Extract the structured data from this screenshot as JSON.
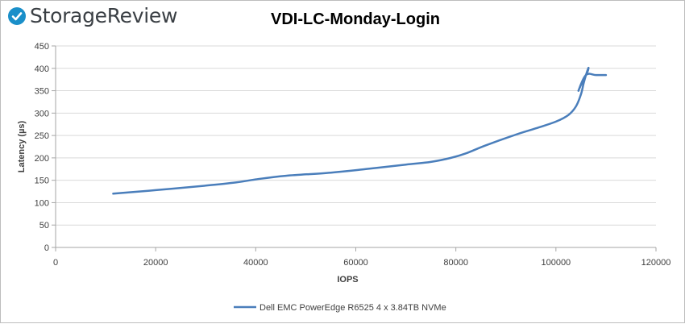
{
  "brand": {
    "name": "StorageReview",
    "logo_icon": "storagereview-logo-icon",
    "accent": "#1a8fc9"
  },
  "chart_data": {
    "type": "line",
    "title": "VDI-LC-Monday-Login",
    "xlabel": "IOPS",
    "ylabel": "Latency (µs)",
    "xlim": [
      0,
      120000
    ],
    "ylim": [
      0,
      450
    ],
    "x_ticks": [
      "0",
      "20000",
      "40000",
      "60000",
      "80000",
      "100000",
      "120000"
    ],
    "y_ticks": [
      "0",
      "50",
      "100",
      "150",
      "200",
      "250",
      "300",
      "350",
      "400",
      "450"
    ],
    "grid": "horizontal",
    "legend_position": "bottom",
    "series": [
      {
        "name": "Dell EMC PowerEdge R6525 4 x 3.84TB NVMe",
        "color": "#4a7ebb",
        "x": [
          11500,
          20000,
          30000,
          36000,
          40000,
          46000,
          55000,
          62000,
          70000,
          75000,
          79000,
          82000,
          86000,
          92000,
          96000,
          100000,
          102500,
          104000,
          105000,
          105500,
          106000,
          106500,
          106300,
          105500,
          104500,
          106000,
          108000,
          110000
        ],
        "y": [
          120,
          128,
          138,
          145,
          152,
          160,
          167,
          175,
          185,
          191,
          200,
          210,
          228,
          252,
          266,
          281,
          296,
          315,
          342,
          365,
          385,
          401,
          392,
          375,
          350,
          385,
          385,
          385
        ]
      }
    ]
  }
}
